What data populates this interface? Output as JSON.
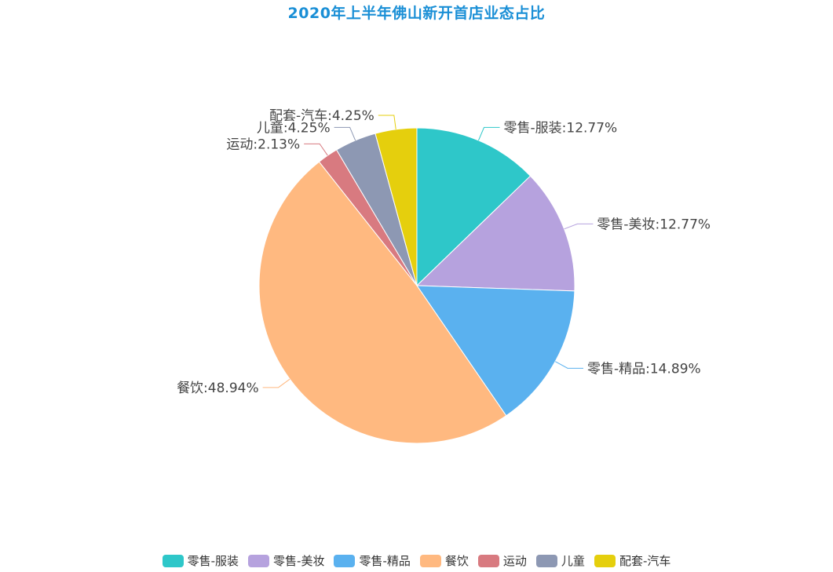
{
  "chart_data": {
    "type": "pie",
    "title": "2020年上半年佛山新开首店业态占比",
    "legend_position": "bottom",
    "slices": [
      {
        "name": "零售-服装",
        "value": 12.77,
        "label": "零售-服装:12.77%",
        "color": "#2ec7c9"
      },
      {
        "name": "零售-美妆",
        "value": 12.77,
        "label": "零售-美妆:12.77%",
        "color": "#b6a2de"
      },
      {
        "name": "零售-精品",
        "value": 14.89,
        "label": "零售-精品:14.89%",
        "color": "#5ab1ef"
      },
      {
        "name": "餐饮",
        "value": 48.94,
        "label": "餐饮:48.94%",
        "color": "#ffb980"
      },
      {
        "name": "运动",
        "value": 2.13,
        "label": "运动:2.13%",
        "color": "#d87a80"
      },
      {
        "name": "儿童",
        "value": 4.25,
        "label": "儿童:4.25%",
        "color": "#8d98b3"
      },
      {
        "name": "配套-汽车",
        "value": 4.25,
        "label": "配套-汽车:4.25%",
        "color": "#e5cf0d"
      }
    ]
  }
}
